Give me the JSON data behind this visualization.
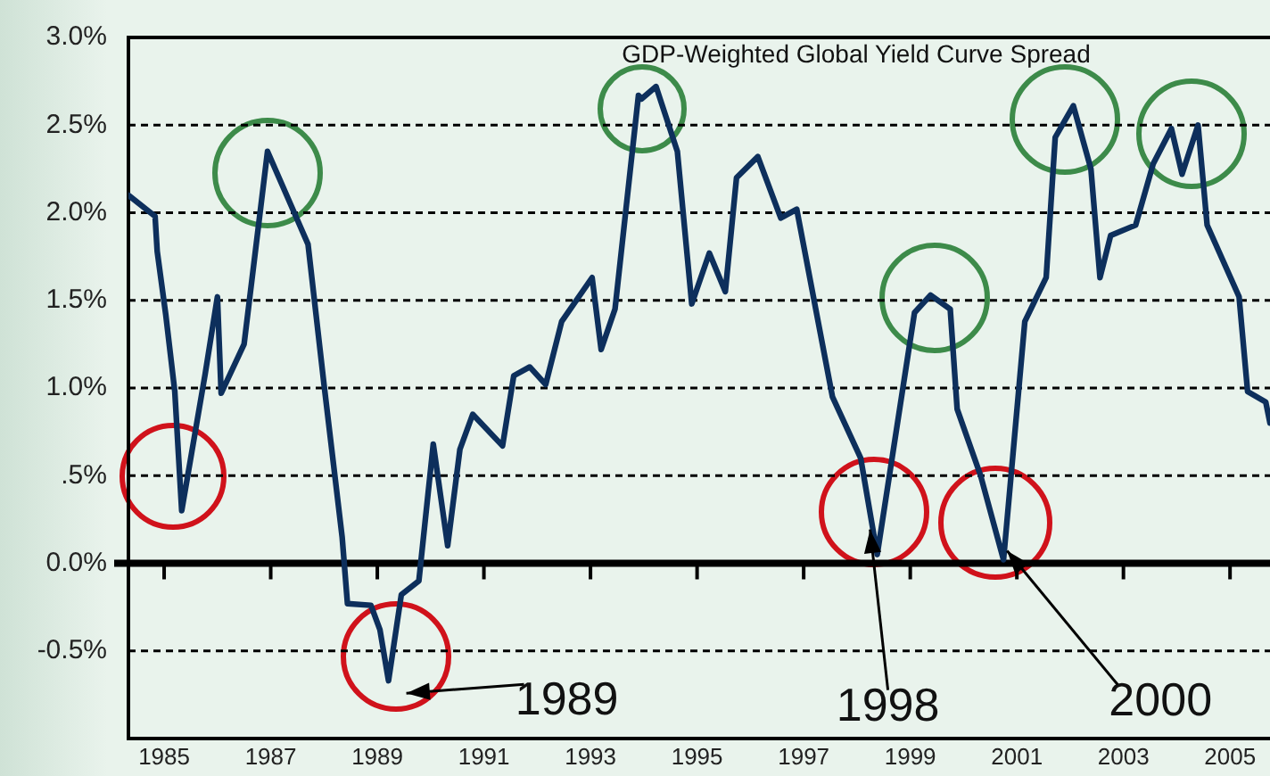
{
  "chart_data": {
    "type": "line",
    "title": "GDP-Weighted Global Yield Curve Spread",
    "series": [
      {
        "color": "#0d2f5c",
        "x": [
          1984.33,
          1984.83,
          1984.87,
          1985.03,
          1985.2,
          1985.33,
          1985.77,
          1986.0,
          1986.07,
          1986.5,
          1986.94,
          1987.7,
          1988.0,
          1988.34,
          1988.44,
          1988.88,
          1989.05,
          1989.21,
          1989.45,
          1989.78,
          1990.05,
          1990.32,
          1990.55,
          1990.79,
          1991.35,
          1991.56,
          1991.86,
          1992.16,
          1992.46,
          1993.03,
          1993.2,
          1993.46,
          1993.9,
          1993.96,
          1994.23,
          1994.63,
          1994.9,
          1995.23,
          1995.53,
          1995.74,
          1996.14,
          1996.57,
          1996.87,
          1997.54,
          1998.07,
          1998.38,
          1999.08,
          1999.38,
          1999.75,
          1999.88,
          2000.32,
          2000.75,
          2001.15,
          2001.55,
          2001.72,
          2002.06,
          2002.39,
          2002.56,
          2002.76,
          2003.23,
          2003.56,
          2003.9,
          2004.1,
          2004.4,
          2004.57,
          2005.17,
          2005.33,
          2005.67,
          2005.75
        ],
        "values": [
          2.1,
          1.98,
          1.78,
          1.42,
          0.98,
          0.3,
          1.08,
          1.52,
          0.97,
          1.25,
          2.35,
          1.82,
          1.02,
          0.15,
          -0.23,
          -0.24,
          -0.38,
          -0.67,
          -0.18,
          -0.1,
          0.68,
          0.1,
          0.65,
          0.85,
          0.67,
          1.07,
          1.12,
          1.02,
          1.38,
          1.63,
          1.22,
          1.45,
          2.67,
          2.65,
          2.72,
          2.35,
          1.48,
          1.77,
          1.55,
          2.2,
          2.32,
          1.97,
          2.02,
          0.95,
          0.6,
          0.05,
          1.43,
          1.53,
          1.45,
          0.88,
          0.5,
          0.02,
          1.38,
          1.63,
          2.43,
          2.61,
          2.25,
          1.63,
          1.87,
          1.93,
          2.28,
          2.48,
          2.22,
          2.5,
          1.93,
          1.52,
          0.98,
          0.92,
          0.8
        ]
      }
    ],
    "xlim": [
      1984.33,
      2005.75
    ],
    "xticks": [
      1985,
      1987,
      1989,
      1991,
      1993,
      1995,
      1997,
      1999,
      2001,
      2003,
      2005
    ],
    "ylim": [
      -1,
      3
    ],
    "yticks": [
      {
        "value": -1,
        "label": null
      },
      {
        "value": -0.5,
        "label": "-0.5%"
      },
      {
        "value": 0,
        "label": "0.0%"
      },
      {
        "value": 0.5,
        "label": ".5%"
      },
      {
        "value": 1,
        "label": "1.0%"
      },
      {
        "value": 1.5,
        "label": "1.5%"
      },
      {
        "value": 2,
        "label": "2.0%"
      },
      {
        "value": 2.5,
        "label": "2.5%"
      },
      {
        "value": 3,
        "label": "3.0%"
      }
    ],
    "grid": "y",
    "legend": false,
    "marker": "none",
    "line_style": "solid",
    "ref_lines": [
      {
        "axis": "y",
        "value": 0,
        "color": "#000000"
      }
    ],
    "annotations": [
      {
        "text": "1989",
        "x": 1989.21,
        "y": -0.67
      },
      {
        "text": "1998",
        "x": 1998.38,
        "y": 0.05
      },
      {
        "text": "2000",
        "x": 2000.75,
        "y": 0.02
      }
    ]
  }
}
